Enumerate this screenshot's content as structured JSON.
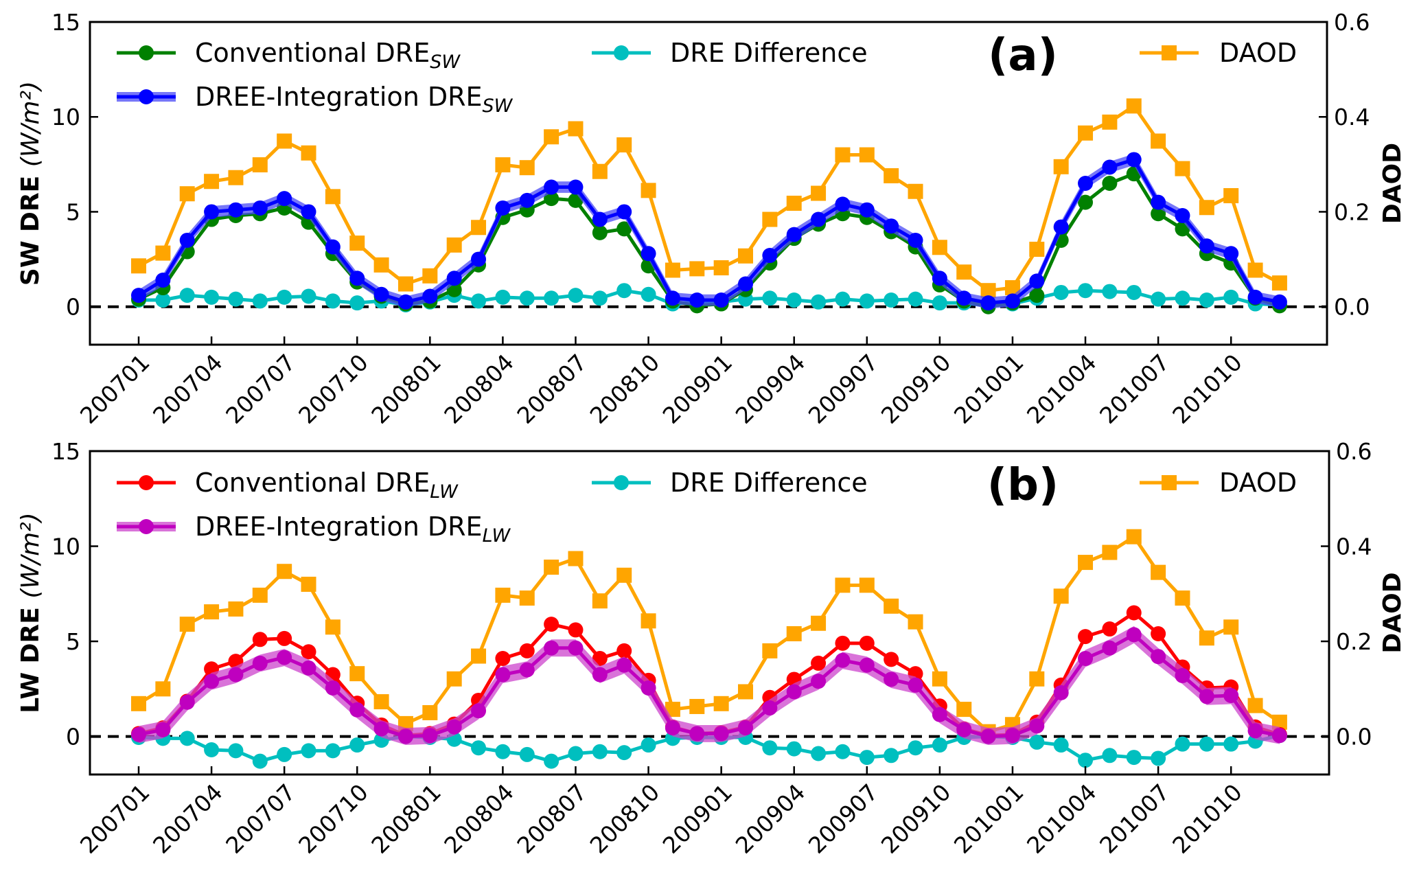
{
  "chart_data": [
    {
      "type": "line",
      "panel_label": "(a)",
      "xlabel": "",
      "ylabel": "SW DRE",
      "ylabel_unit": "(W/m²)",
      "y2label": "DAOD",
      "ylim": [
        -2,
        15
      ],
      "y2lim": [
        -0.08,
        0.6
      ],
      "yticks": [
        "0",
        "5",
        "10",
        "15"
      ],
      "yticks_values": [
        0,
        5,
        10,
        15
      ],
      "y2ticks": [
        "0.0",
        "0.2",
        "0.4",
        "0.6"
      ],
      "y2ticks_values": [
        0,
        0.2,
        0.4,
        0.6
      ],
      "xtick_labels": [
        "200701",
        "200704",
        "200707",
        "200710",
        "200801",
        "200804",
        "200807",
        "200810",
        "200901",
        "200904",
        "200907",
        "200910",
        "201001",
        "201004",
        "201007",
        "201010"
      ],
      "x": [
        "200701",
        "200702",
        "200703",
        "200704",
        "200705",
        "200706",
        "200707",
        "200708",
        "200709",
        "200710",
        "200711",
        "200712",
        "200801",
        "200802",
        "200803",
        "200804",
        "200805",
        "200806",
        "200807",
        "200808",
        "200809",
        "200810",
        "200811",
        "200812",
        "200901",
        "200902",
        "200903",
        "200904",
        "200905",
        "200906",
        "200907",
        "200908",
        "200909",
        "200910",
        "200911",
        "200912",
        "201001",
        "201002",
        "201003",
        "201004",
        "201005",
        "201006",
        "201007",
        "201008",
        "201009",
        "201010",
        "201011",
        "201012"
      ],
      "reference_line": {
        "y": 0,
        "style": "dashed"
      },
      "grid": false,
      "legend_placement": "top",
      "series": [
        {
          "name": "Conventional DRE",
          "subscript": "SW",
          "axis": "left",
          "color": "#008000",
          "marker": "circle",
          "values": [
            0.4,
            1.0,
            2.9,
            4.6,
            4.8,
            4.9,
            5.2,
            4.45,
            2.8,
            1.3,
            0.55,
            0.15,
            0.3,
            0.9,
            2.2,
            4.7,
            5.1,
            5.7,
            5.6,
            3.9,
            4.1,
            2.15,
            0.3,
            0.05,
            0.15,
            0.9,
            2.3,
            3.6,
            4.35,
            4.9,
            4.7,
            3.95,
            3.15,
            1.15,
            0.3,
            0.0,
            0.2,
            0.6,
            3.5,
            5.5,
            6.5,
            7.0,
            4.9,
            4.1,
            2.8,
            2.3,
            0.45,
            0.05
          ]
        },
        {
          "name": "DREE-Integration DRE",
          "subscript": "SW",
          "axis": "left",
          "color": "#0000ff",
          "band_color": "#4a4af5",
          "band_halfwidth": 0.3,
          "marker": "circle",
          "values": [
            0.6,
            1.4,
            3.5,
            5.0,
            5.1,
            5.2,
            5.7,
            5.0,
            3.15,
            1.5,
            0.65,
            0.25,
            0.55,
            1.5,
            2.5,
            5.2,
            5.6,
            6.3,
            6.3,
            4.6,
            5.0,
            2.8,
            0.45,
            0.35,
            0.35,
            1.2,
            2.7,
            3.8,
            4.6,
            5.4,
            5.1,
            4.25,
            3.5,
            1.5,
            0.45,
            0.2,
            0.3,
            1.35,
            4.2,
            6.5,
            7.35,
            7.75,
            5.5,
            4.8,
            3.2,
            2.8,
            0.5,
            0.25
          ]
        },
        {
          "name": "DRE Difference",
          "axis": "left",
          "color": "#00bfbf",
          "marker": "circle",
          "values": [
            0.35,
            0.35,
            0.6,
            0.5,
            0.4,
            0.3,
            0.5,
            0.55,
            0.3,
            0.2,
            0.3,
            0.1,
            0.25,
            0.6,
            0.3,
            0.5,
            0.45,
            0.45,
            0.6,
            0.45,
            0.85,
            0.65,
            0.15,
            0.25,
            0.25,
            0.4,
            0.45,
            0.35,
            0.25,
            0.4,
            0.3,
            0.35,
            0.4,
            0.2,
            0.2,
            0.05,
            0.15,
            0.45,
            0.75,
            0.85,
            0.8,
            0.75,
            0.4,
            0.45,
            0.35,
            0.5,
            0.15,
            0.1
          ]
        },
        {
          "name": "DAOD",
          "axis": "right",
          "color": "#ffa500",
          "marker": "square",
          "values": [
            0.086,
            0.113,
            0.238,
            0.264,
            0.272,
            0.299,
            0.349,
            0.324,
            0.232,
            0.134,
            0.088,
            0.048,
            0.065,
            0.13,
            0.167,
            0.299,
            0.293,
            0.358,
            0.375,
            0.285,
            0.341,
            0.245,
            0.077,
            0.08,
            0.082,
            0.107,
            0.184,
            0.218,
            0.239,
            0.32,
            0.32,
            0.276,
            0.243,
            0.125,
            0.073,
            0.034,
            0.04,
            0.121,
            0.295,
            0.366,
            0.389,
            0.423,
            0.349,
            0.291,
            0.209,
            0.234,
            0.077,
            0.05
          ]
        }
      ]
    },
    {
      "type": "line",
      "panel_label": "(b)",
      "xlabel": "",
      "ylabel": "LW DRE",
      "ylabel_unit": "(W/m²)",
      "y2label": "DAOD",
      "ylim": [
        -2,
        15
      ],
      "y2lim": [
        -0.08,
        0.6
      ],
      "yticks": [
        "0",
        "5",
        "10",
        "15"
      ],
      "yticks_values": [
        0,
        5,
        10,
        15
      ],
      "y2ticks": [
        "0.0",
        "0.2",
        "0.4",
        "0.6"
      ],
      "y2ticks_values": [
        0,
        0.2,
        0.4,
        0.6
      ],
      "xtick_labels": [
        "200701",
        "200704",
        "200707",
        "200710",
        "200801",
        "200804",
        "200807",
        "200810",
        "200901",
        "200904",
        "200907",
        "200910",
        "201001",
        "201004",
        "201007",
        "201010"
      ],
      "x": [
        "200701",
        "200702",
        "200703",
        "200704",
        "200705",
        "200706",
        "200707",
        "200708",
        "200709",
        "200710",
        "200711",
        "200712",
        "200801",
        "200802",
        "200803",
        "200804",
        "200805",
        "200806",
        "200807",
        "200808",
        "200809",
        "200810",
        "200811",
        "200812",
        "200901",
        "200902",
        "200903",
        "200904",
        "200905",
        "200906",
        "200907",
        "200908",
        "200909",
        "200910",
        "200911",
        "200912",
        "201001",
        "201002",
        "201003",
        "201004",
        "201005",
        "201006",
        "201007",
        "201008",
        "201009",
        "201010",
        "201011",
        "201012"
      ],
      "reference_line": {
        "y": 0,
        "style": "dashed"
      },
      "grid": false,
      "legend_placement": "top",
      "series": [
        {
          "name": "Conventional DRE",
          "subscript": "LW",
          "axis": "left",
          "color": "#ff0000",
          "marker": "circle",
          "values": [
            0.15,
            0.45,
            1.85,
            3.55,
            3.95,
            5.1,
            5.15,
            4.45,
            3.25,
            1.75,
            0.6,
            0.05,
            0.15,
            0.65,
            1.9,
            4.1,
            4.5,
            5.9,
            5.6,
            4.1,
            4.5,
            2.95,
            0.5,
            0.15,
            0.2,
            0.5,
            2.05,
            3.0,
            3.85,
            4.9,
            4.9,
            4.05,
            3.3,
            1.6,
            0.4,
            0.05,
            0.1,
            0.75,
            2.7,
            5.25,
            5.65,
            6.5,
            5.4,
            3.65,
            2.55,
            2.6,
            0.5,
            0.1
          ]
        },
        {
          "name": "DREE-Integration DRE",
          "subscript": "LW",
          "axis": "left",
          "color": "#bf00bf",
          "band_color": "#cc44cc",
          "band_halfwidth": 0.45,
          "marker": "circle",
          "values": [
            0.1,
            0.35,
            1.8,
            2.9,
            3.25,
            3.85,
            4.15,
            3.6,
            2.55,
            1.4,
            0.4,
            0.0,
            0.05,
            0.5,
            1.35,
            3.25,
            3.5,
            4.65,
            4.65,
            3.25,
            3.75,
            2.55,
            0.45,
            0.15,
            0.15,
            0.45,
            1.5,
            2.35,
            2.9,
            4.0,
            3.75,
            3.0,
            2.7,
            1.15,
            0.35,
            0.0,
            0.05,
            0.55,
            2.3,
            4.1,
            4.65,
            5.35,
            4.2,
            3.2,
            2.1,
            2.15,
            0.3,
            0.05
          ]
        },
        {
          "name": "DRE Difference",
          "axis": "left",
          "color": "#00bfbf",
          "marker": "circle",
          "values": [
            -0.05,
            -0.1,
            -0.1,
            -0.7,
            -0.75,
            -1.3,
            -0.95,
            -0.75,
            -0.75,
            -0.45,
            -0.2,
            0.0,
            -0.05,
            -0.15,
            -0.6,
            -0.8,
            -0.95,
            -1.3,
            -0.9,
            -0.8,
            -0.85,
            -0.45,
            -0.1,
            -0.05,
            -0.05,
            -0.05,
            -0.6,
            -0.65,
            -0.9,
            -0.8,
            -1.1,
            -1.0,
            -0.6,
            -0.45,
            -0.05,
            0.0,
            -0.05,
            -0.3,
            -0.45,
            -1.25,
            -1.0,
            -1.1,
            -1.15,
            -0.4,
            -0.4,
            -0.4,
            -0.25,
            0.05
          ]
        },
        {
          "name": "DAOD",
          "axis": "right",
          "color": "#ffa500",
          "marker": "square",
          "values": [
            0.069,
            0.1,
            0.236,
            0.262,
            0.268,
            0.297,
            0.347,
            0.32,
            0.23,
            0.132,
            0.073,
            0.027,
            0.05,
            0.121,
            0.169,
            0.297,
            0.291,
            0.356,
            0.374,
            0.285,
            0.339,
            0.243,
            0.057,
            0.063,
            0.069,
            0.094,
            0.18,
            0.216,
            0.238,
            0.318,
            0.318,
            0.274,
            0.241,
            0.121,
            0.057,
            0.01,
            0.025,
            0.121,
            0.295,
            0.366,
            0.387,
            0.42,
            0.345,
            0.291,
            0.207,
            0.23,
            0.065,
            0.03
          ]
        }
      ]
    }
  ]
}
